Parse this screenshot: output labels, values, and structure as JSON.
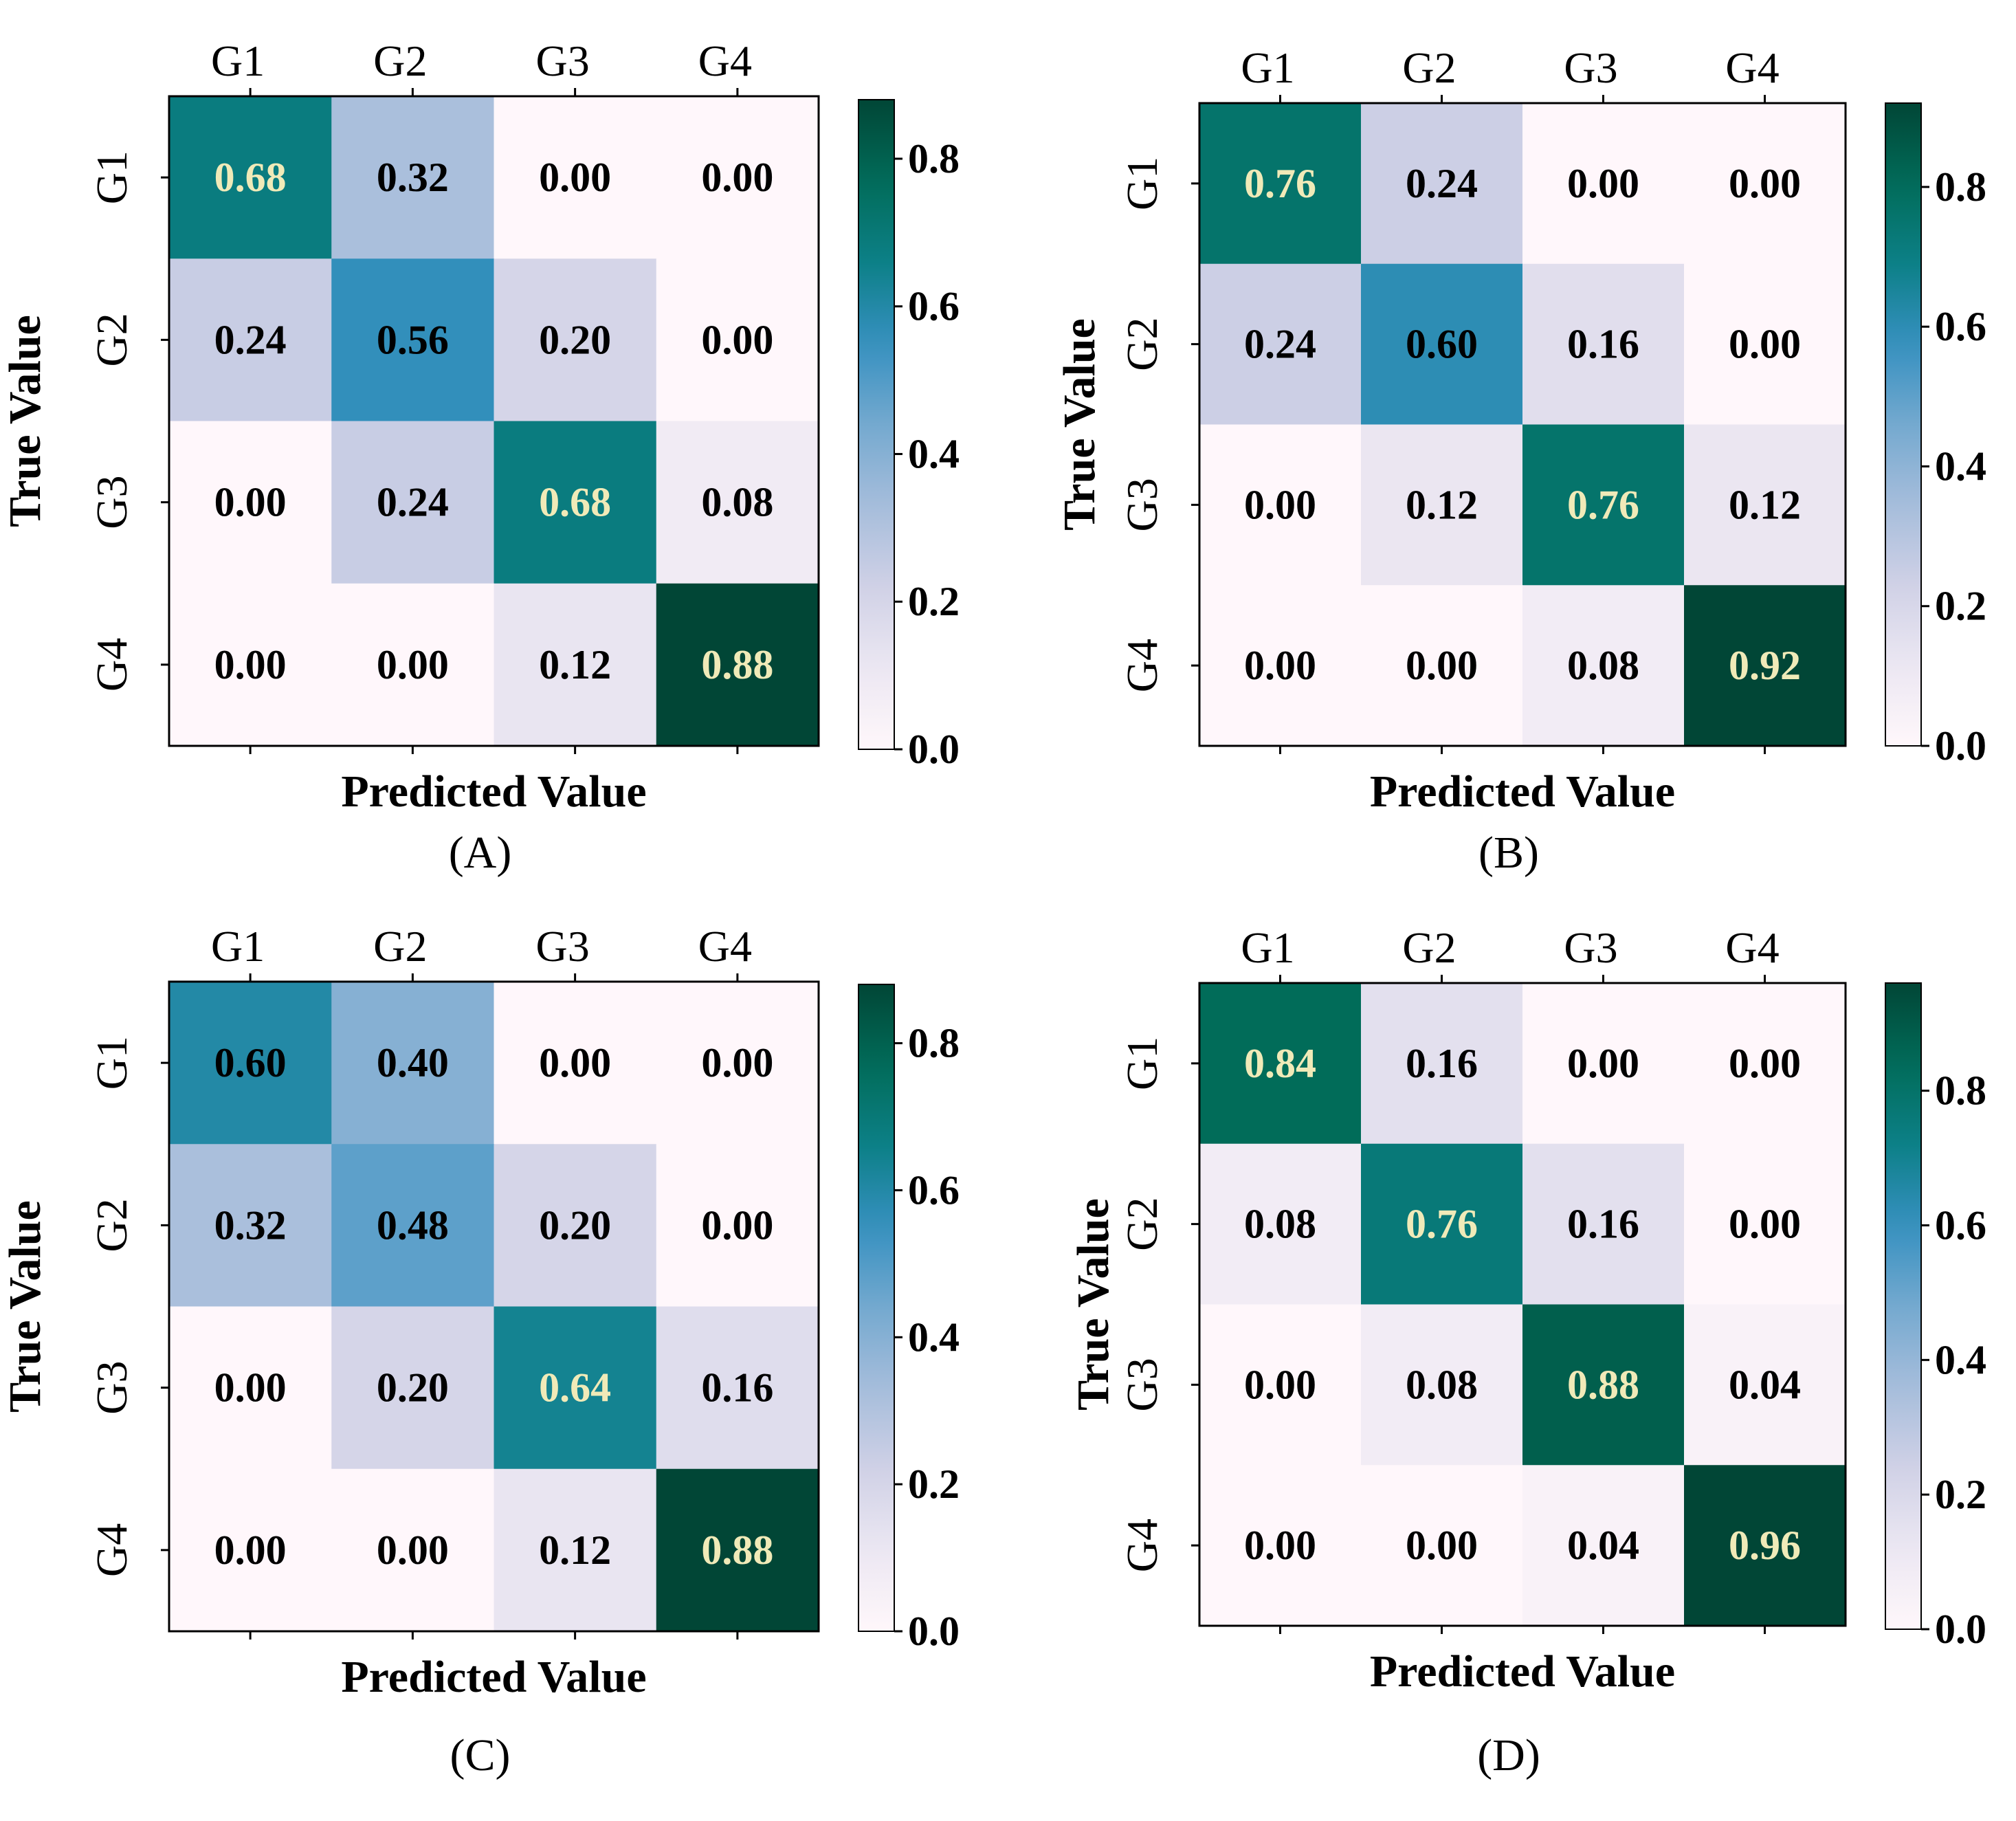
{
  "chart_data": [
    {
      "type": "heatmap",
      "panel_label": "(A)",
      "xlabel": "Predicted Value",
      "ylabel": "True Value",
      "x_categories": [
        "G1",
        "G2",
        "G3",
        "G4"
      ],
      "y_categories": [
        "G1",
        "G2",
        "G3",
        "G4"
      ],
      "values": [
        [
          0.68,
          0.32,
          0.0,
          0.0
        ],
        [
          0.24,
          0.56,
          0.2,
          0.0
        ],
        [
          0.0,
          0.24,
          0.68,
          0.08
        ],
        [
          0.0,
          0.0,
          0.12,
          0.88
        ]
      ],
      "labels": [
        [
          "0.68",
          "0.32",
          "0.00",
          "0.00"
        ],
        [
          "0.24",
          "0.56",
          "0.20",
          "0.00"
        ],
        [
          "0.00",
          "0.24",
          "0.68",
          "0.08"
        ],
        [
          "0.00",
          "0.00",
          "0.12",
          "0.88"
        ]
      ],
      "colorbar": {
        "vmin": 0.0,
        "vmax": 0.88,
        "ticks": [
          0.0,
          0.2,
          0.4,
          0.6,
          0.8
        ],
        "tick_labels": [
          "0.0",
          "0.2",
          "0.4",
          "0.6",
          "0.8"
        ]
      }
    },
    {
      "type": "heatmap",
      "panel_label": "(B)",
      "xlabel": "Predicted Value",
      "ylabel": "True Value",
      "x_categories": [
        "G1",
        "G2",
        "G3",
        "G4"
      ],
      "y_categories": [
        "G1",
        "G2",
        "G3",
        "G4"
      ],
      "values": [
        [
          0.76,
          0.24,
          0.0,
          0.0
        ],
        [
          0.24,
          0.6,
          0.16,
          0.0
        ],
        [
          0.0,
          0.12,
          0.76,
          0.12
        ],
        [
          0.0,
          0.0,
          0.08,
          0.92
        ]
      ],
      "labels": [
        [
          "0.76",
          "0.24",
          "0.00",
          "0.00"
        ],
        [
          "0.24",
          "0.60",
          "0.16",
          "0.00"
        ],
        [
          "0.00",
          "0.12",
          "0.76",
          "0.12"
        ],
        [
          "0.00",
          "0.00",
          "0.08",
          "0.92"
        ]
      ],
      "colorbar": {
        "vmin": 0.0,
        "vmax": 0.92,
        "ticks": [
          0.0,
          0.2,
          0.4,
          0.6,
          0.8
        ],
        "tick_labels": [
          "0.0",
          "0.2",
          "0.4",
          "0.6",
          "0.8"
        ]
      }
    },
    {
      "type": "heatmap",
      "panel_label": "(C)",
      "xlabel": "Predicted Value",
      "ylabel": "True Value",
      "x_categories": [
        "G1",
        "G2",
        "G3",
        "G4"
      ],
      "y_categories": [
        "G1",
        "G2",
        "G3",
        "G4"
      ],
      "values": [
        [
          0.6,
          0.4,
          0.0,
          0.0
        ],
        [
          0.32,
          0.48,
          0.2,
          0.0
        ],
        [
          0.0,
          0.2,
          0.64,
          0.16
        ],
        [
          0.0,
          0.0,
          0.12,
          0.88
        ]
      ],
      "labels": [
        [
          "0.60",
          "0.40",
          "0.00",
          "0.00"
        ],
        [
          "0.32",
          "0.48",
          "0.20",
          "0.00"
        ],
        [
          "0.00",
          "0.20",
          "0.64",
          "0.16"
        ],
        [
          "0.00",
          "0.00",
          "0.12",
          "0.88"
        ]
      ],
      "colorbar": {
        "vmin": 0.0,
        "vmax": 0.88,
        "ticks": [
          0.0,
          0.2,
          0.4,
          0.6,
          0.8
        ],
        "tick_labels": [
          "0.0",
          "0.2",
          "0.4",
          "0.6",
          "0.8"
        ]
      }
    },
    {
      "type": "heatmap",
      "panel_label": "(D)",
      "xlabel": "Predicted Value",
      "ylabel": "True Value",
      "x_categories": [
        "G1",
        "G2",
        "G3",
        "G4"
      ],
      "y_categories": [
        "G1",
        "G2",
        "G3",
        "G4"
      ],
      "values": [
        [
          0.84,
          0.16,
          0.0,
          0.0
        ],
        [
          0.08,
          0.76,
          0.16,
          0.0
        ],
        [
          0.0,
          0.08,
          0.88,
          0.04
        ],
        [
          0.0,
          0.0,
          0.04,
          0.96
        ]
      ],
      "labels": [
        [
          "0.84",
          "0.16",
          "0.00",
          "0.00"
        ],
        [
          "0.08",
          "0.76",
          "0.16",
          "0.00"
        ],
        [
          "0.00",
          "0.08",
          "0.88",
          "0.04"
        ],
        [
          "0.00",
          "0.00",
          "0.04",
          "0.96"
        ]
      ],
      "colorbar": {
        "vmin": 0.0,
        "vmax": 0.96,
        "ticks": [
          0.0,
          0.2,
          0.4,
          0.6,
          0.8
        ],
        "tick_labels": [
          "0.0",
          "0.2",
          "0.4",
          "0.6",
          "0.8"
        ]
      }
    }
  ],
  "colors": {
    "colormap": [
      "#fff7fb",
      "#ece7f2",
      "#d0d1e6",
      "#a6bddb",
      "#74a9cf",
      "#3690c0",
      "#0c8087",
      "#016c59",
      "#014636"
    ],
    "light_text": "#f0eab8",
    "dark_text": "#000000",
    "frame": "#000000"
  }
}
